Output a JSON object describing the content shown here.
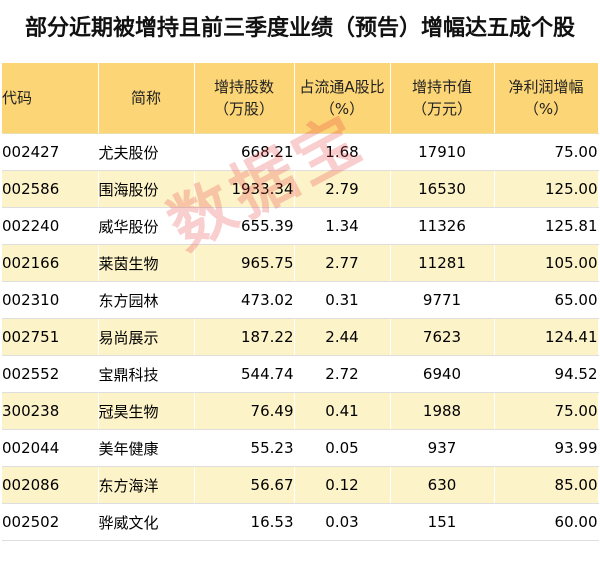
{
  "title": "部分近期被增持且前三季度业绩（预告）增幅达五成个股",
  "table": {
    "headers": [
      {
        "line1": "代码",
        "line2": ""
      },
      {
        "line1": "简称",
        "line2": ""
      },
      {
        "line1": "增持股数",
        "line2": "（万股）"
      },
      {
        "line1": "占流通A股比",
        "line2": "（%）"
      },
      {
        "line1": "增持市值",
        "line2": "（万元）"
      },
      {
        "line1": "净利润增幅",
        "line2": "（%）"
      }
    ],
    "rows": [
      {
        "code": "002427",
        "name": "尤夫股份",
        "shares": "668.21",
        "ratio": "1.68",
        "value": "17910",
        "growth": "75.00"
      },
      {
        "code": "002586",
        "name": "围海股份",
        "shares": "1933.34",
        "ratio": "2.79",
        "value": "16530",
        "growth": "125.00"
      },
      {
        "code": "002240",
        "name": "威华股份",
        "shares": "655.39",
        "ratio": "1.34",
        "value": "11326",
        "growth": "125.81"
      },
      {
        "code": "002166",
        "name": "莱茵生物",
        "shares": "965.75",
        "ratio": "2.77",
        "value": "11281",
        "growth": "105.00"
      },
      {
        "code": "002310",
        "name": "东方园林",
        "shares": "473.02",
        "ratio": "0.31",
        "value": "9771",
        "growth": "65.00"
      },
      {
        "code": "002751",
        "name": "易尚展示",
        "shares": "187.22",
        "ratio": "2.44",
        "value": "7623",
        "growth": "124.41"
      },
      {
        "code": "002552",
        "name": "宝鼎科技",
        "shares": "544.74",
        "ratio": "2.72",
        "value": "6940",
        "growth": "94.52"
      },
      {
        "code": "300238",
        "name": "冠昊生物",
        "shares": "76.49",
        "ratio": "0.41",
        "value": "1988",
        "growth": "75.00"
      },
      {
        "code": "002044",
        "name": "美年健康",
        "shares": "55.23",
        "ratio": "0.05",
        "value": "937",
        "growth": "93.99"
      },
      {
        "code": "002086",
        "name": "东方海洋",
        "shares": "56.67",
        "ratio": "0.12",
        "value": "630",
        "growth": "85.00"
      },
      {
        "code": "002502",
        "name": "骅威文化",
        "shares": "16.53",
        "ratio": "0.03",
        "value": "151",
        "growth": "60.00"
      }
    ]
  },
  "watermark": "数据宝",
  "colors": {
    "header_bg": "#fcd676",
    "stripe_bg": "#fdf3c9",
    "watermark": "#e83c3c"
  }
}
